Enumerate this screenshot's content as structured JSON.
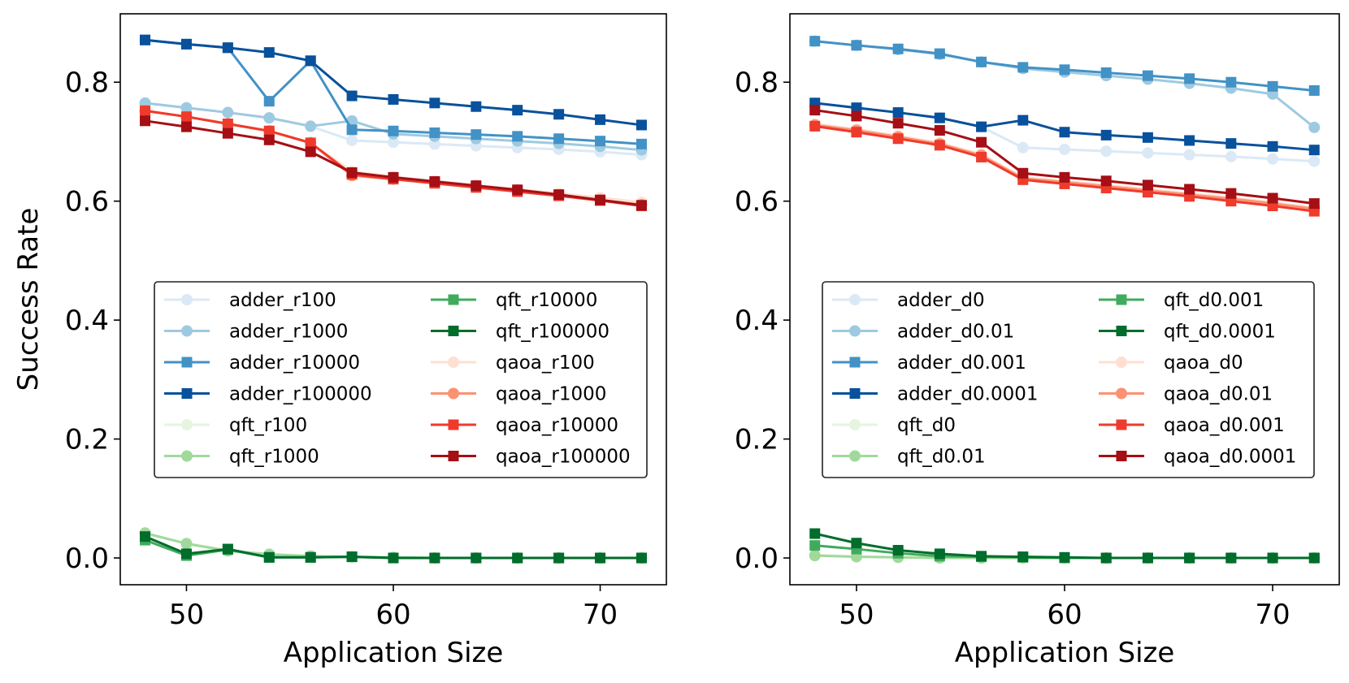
{
  "chart_data": [
    {
      "type": "line",
      "title": "",
      "xlabel": "Application Size",
      "ylabel": "Success Rate",
      "xlim": [
        46.8,
        73.2
      ],
      "ylim": [
        -0.045,
        0.915
      ],
      "xticks": [
        50,
        60,
        70
      ],
      "xtick_labels": [
        "50",
        "60",
        "70"
      ],
      "yticks": [
        0.0,
        0.2,
        0.4,
        0.6,
        0.8
      ],
      "ytick_labels": [
        "0.0",
        "0.2",
        "0.4",
        "0.6",
        "0.8"
      ],
      "legend_position": "center",
      "x": [
        48,
        50,
        52,
        54,
        56,
        58,
        60,
        62,
        64,
        66,
        68,
        70,
        72
      ],
      "series": [
        {
          "name": "adder_r100",
          "color": "#dbe9f6",
          "marker": "circle",
          "values": [
            0.765,
            0.757,
            0.749,
            0.74,
            0.726,
            0.702,
            0.699,
            0.696,
            0.693,
            0.69,
            0.687,
            0.683,
            0.678
          ]
        },
        {
          "name": "adder_r1000",
          "color": "#9ecae1",
          "marker": "circle",
          "values": [
            0.765,
            0.757,
            0.749,
            0.74,
            0.726,
            0.735,
            0.713,
            0.709,
            0.705,
            0.701,
            0.697,
            0.692,
            0.686
          ]
        },
        {
          "name": "adder_r10000",
          "color": "#4292c6",
          "marker": "square",
          "values": [
            0.871,
            0.864,
            0.858,
            0.768,
            0.836,
            0.72,
            0.718,
            0.715,
            0.712,
            0.709,
            0.705,
            0.701,
            0.696
          ]
        },
        {
          "name": "adder_r100000",
          "color": "#08519c",
          "marker": "square",
          "values": [
            0.871,
            0.864,
            0.858,
            0.85,
            0.836,
            0.777,
            0.771,
            0.765,
            0.759,
            0.753,
            0.746,
            0.737,
            0.728
          ]
        },
        {
          "name": "qft_r100",
          "color": "#e5f5e0",
          "marker": "circle",
          "values": [
            0.04,
            0.025,
            0.013,
            0.007,
            0.004,
            0.002,
            0.001,
            0.0,
            0.0,
            0.0,
            0.0,
            0.0,
            0.0
          ]
        },
        {
          "name": "qft_r1000",
          "color": "#a1d99b",
          "marker": "circle",
          "values": [
            0.042,
            0.024,
            0.012,
            0.006,
            0.003,
            0.002,
            0.001,
            0.0,
            0.0,
            0.0,
            0.0,
            0.0,
            0.0
          ]
        },
        {
          "name": "qft_r10000",
          "color": "#41ab5d",
          "marker": "square",
          "values": [
            0.03,
            0.004,
            0.014,
            0.001,
            0.001,
            0.002,
            0.0,
            0.0,
            0.0,
            0.0,
            0.0,
            0.0,
            0.0
          ]
        },
        {
          "name": "qft_r100000",
          "color": "#006d2c",
          "marker": "square",
          "values": [
            0.036,
            0.007,
            0.015,
            0.001,
            0.001,
            0.002,
            0.0,
            0.0,
            0.0,
            0.0,
            0.0,
            0.0,
            0.0
          ]
        },
        {
          "name": "qaoa_r100",
          "color": "#fee0d2",
          "marker": "circle",
          "values": [
            0.752,
            0.742,
            0.73,
            0.718,
            0.698,
            0.65,
            0.641,
            0.634,
            0.627,
            0.62,
            0.613,
            0.606,
            0.598
          ]
        },
        {
          "name": "qaoa_r1000",
          "color": "#fc9272",
          "marker": "circle",
          "values": [
            0.752,
            0.742,
            0.73,
            0.718,
            0.698,
            0.643,
            0.637,
            0.631,
            0.624,
            0.617,
            0.61,
            0.602,
            0.594
          ]
        },
        {
          "name": "qaoa_r10000",
          "color": "#ef3b2c",
          "marker": "square",
          "values": [
            0.752,
            0.742,
            0.73,
            0.718,
            0.698,
            0.645,
            0.637,
            0.63,
            0.623,
            0.616,
            0.609,
            0.601,
            0.592
          ]
        },
        {
          "name": "qaoa_r100000",
          "color": "#a50f15",
          "marker": "square",
          "values": [
            0.735,
            0.725,
            0.714,
            0.703,
            0.683,
            0.648,
            0.64,
            0.633,
            0.626,
            0.619,
            0.611,
            0.602,
            0.593
          ]
        }
      ]
    },
    {
      "type": "line",
      "title": "",
      "xlabel": "Application Size",
      "ylabel": "",
      "xlim": [
        46.8,
        73.2
      ],
      "ylim": [
        -0.045,
        0.915
      ],
      "xticks": [
        50,
        60,
        70
      ],
      "xtick_labels": [
        "50",
        "60",
        "70"
      ],
      "yticks": [
        0.0,
        0.2,
        0.4,
        0.6,
        0.8
      ],
      "ytick_labels": [
        "0.0",
        "0.2",
        "0.4",
        "0.6",
        "0.8"
      ],
      "legend_position": "center",
      "x": [
        48,
        50,
        52,
        54,
        56,
        58,
        60,
        62,
        64,
        66,
        68,
        70,
        72
      ],
      "series": [
        {
          "name": "adder_d0",
          "color": "#dbe9f6",
          "marker": "circle",
          "values": [
            0.765,
            0.757,
            0.749,
            0.74,
            0.725,
            0.69,
            0.687,
            0.684,
            0.681,
            0.678,
            0.675,
            0.671,
            0.667
          ]
        },
        {
          "name": "adder_d0.01",
          "color": "#9ecae1",
          "marker": "circle",
          "values": [
            0.869,
            0.862,
            0.855,
            0.847,
            0.834,
            0.823,
            0.817,
            0.811,
            0.805,
            0.798,
            0.79,
            0.78,
            0.724
          ]
        },
        {
          "name": "adder_d0.001",
          "color": "#4292c6",
          "marker": "square",
          "values": [
            0.869,
            0.862,
            0.856,
            0.848,
            0.834,
            0.825,
            0.821,
            0.816,
            0.811,
            0.806,
            0.8,
            0.793,
            0.786
          ]
        },
        {
          "name": "adder_d0.0001",
          "color": "#08519c",
          "marker": "square",
          "values": [
            0.765,
            0.757,
            0.749,
            0.74,
            0.725,
            0.736,
            0.716,
            0.711,
            0.707,
            0.702,
            0.697,
            0.692,
            0.686
          ]
        },
        {
          "name": "qft_d0",
          "color": "#e5f5e0",
          "marker": "circle",
          "values": [
            0.005,
            0.003,
            0.001,
            0.001,
            0.0,
            0.0,
            0.0,
            0.0,
            0.0,
            0.0,
            0.0,
            0.0,
            0.0
          ]
        },
        {
          "name": "qft_d0.01",
          "color": "#a1d99b",
          "marker": "circle",
          "values": [
            0.004,
            0.002,
            0.001,
            0.0,
            0.0,
            0.0,
            0.0,
            0.0,
            0.0,
            0.0,
            0.0,
            0.0,
            0.0
          ]
        },
        {
          "name": "qft_d0.001",
          "color": "#41ab5d",
          "marker": "square",
          "values": [
            0.021,
            0.015,
            0.008,
            0.003,
            0.002,
            0.001,
            0.0,
            0.0,
            0.0,
            0.0,
            0.0,
            0.0,
            0.0
          ]
        },
        {
          "name": "qft_d0.0001",
          "color": "#006d2c",
          "marker": "square",
          "values": [
            0.041,
            0.025,
            0.013,
            0.007,
            0.003,
            0.002,
            0.001,
            0.0,
            0.0,
            0.0,
            0.0,
            0.0,
            0.0
          ]
        },
        {
          "name": "qaoa_d0",
          "color": "#fee0d2",
          "marker": "circle",
          "values": [
            0.73,
            0.721,
            0.71,
            0.698,
            0.679,
            0.64,
            0.634,
            0.627,
            0.62,
            0.613,
            0.606,
            0.598,
            0.589
          ]
        },
        {
          "name": "qaoa_d0.01",
          "color": "#fc9272",
          "marker": "circle",
          "values": [
            0.728,
            0.719,
            0.708,
            0.696,
            0.677,
            0.638,
            0.632,
            0.625,
            0.618,
            0.611,
            0.604,
            0.596,
            0.587
          ]
        },
        {
          "name": "qaoa_d0.001",
          "color": "#ef3b2c",
          "marker": "square",
          "values": [
            0.726,
            0.716,
            0.705,
            0.694,
            0.674,
            0.636,
            0.629,
            0.622,
            0.615,
            0.608,
            0.6,
            0.592,
            0.583
          ]
        },
        {
          "name": "qaoa_d0.0001",
          "color": "#a50f15",
          "marker": "square",
          "values": [
            0.753,
            0.743,
            0.731,
            0.719,
            0.699,
            0.647,
            0.64,
            0.634,
            0.627,
            0.62,
            0.613,
            0.605,
            0.596
          ]
        }
      ]
    }
  ]
}
